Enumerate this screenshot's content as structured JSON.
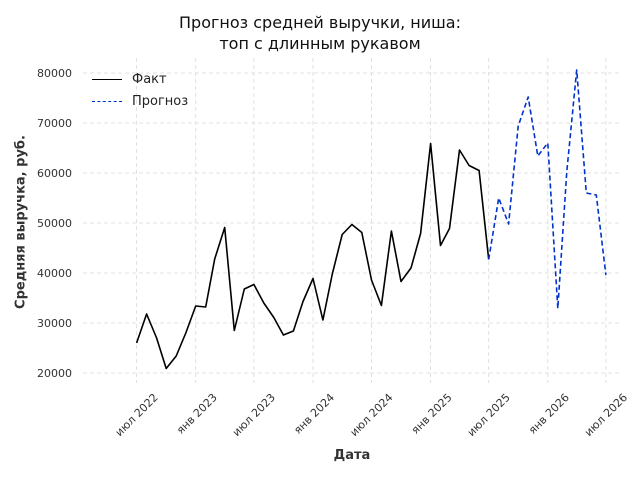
{
  "chart_data": {
    "type": "line",
    "title_line1": "Прогноз средней выручки, ниша:",
    "title_line2": "топ с длинным рукавом",
    "xlabel": "Дата",
    "ylabel": "Средняя выручка, руб.",
    "ylim": [
      18000,
      83000
    ],
    "y_ticks": [
      20000,
      30000,
      40000,
      50000,
      60000,
      70000,
      80000
    ],
    "y_tick_labels": [
      "20000",
      "30000",
      "40000",
      "50000",
      "60000",
      "70000",
      "80000"
    ],
    "x_range": [
      "2022-01-15",
      "2026-08-20"
    ],
    "x_ticks": [
      "2022-07-01",
      "2023-01-01",
      "2023-07-01",
      "2024-01-01",
      "2024-07-01",
      "2025-01-01",
      "2025-07-01",
      "2026-01-01",
      "2026-07-01"
    ],
    "x_tick_labels": [
      "июл 2022",
      "янв 2023",
      "июл 2023",
      "янв 2024",
      "июл 2024",
      "янв 2025",
      "июл 2025",
      "янв 2026",
      "июл 2026"
    ],
    "grid": true,
    "legend_position": "top-left",
    "series": [
      {
        "name": "Факт",
        "color": "#000000",
        "style": "solid",
        "x": [
          "2022-07-01",
          "2022-08-01",
          "2022-09-01",
          "2022-10-01",
          "2022-11-01",
          "2022-12-01",
          "2023-01-01",
          "2023-02-01",
          "2023-03-01",
          "2023-04-01",
          "2023-05-01",
          "2023-06-01",
          "2023-07-01",
          "2023-08-01",
          "2023-09-01",
          "2023-10-01",
          "2023-11-01",
          "2023-12-01",
          "2024-01-01",
          "2024-02-01",
          "2024-03-01",
          "2024-04-01",
          "2024-05-01",
          "2024-06-01",
          "2024-07-01",
          "2024-08-01",
          "2024-09-01",
          "2024-10-01",
          "2024-11-01",
          "2024-12-01",
          "2025-01-01",
          "2025-02-01",
          "2025-03-01",
          "2025-04-01",
          "2025-05-01",
          "2025-06-01",
          "2025-07-01"
        ],
        "values": [
          26000,
          31800,
          27000,
          20900,
          23400,
          28000,
          33400,
          33200,
          42800,
          49100,
          28500,
          36800,
          37700,
          34000,
          31100,
          27600,
          28400,
          34300,
          38900,
          30600,
          39800,
          47700,
          49700,
          48100,
          38600,
          33500,
          48400,
          38300,
          41000,
          47900,
          65900,
          45500,
          48900,
          64600,
          61500,
          60500,
          42700
        ]
      },
      {
        "name": "Прогноз",
        "color": "#0033cc",
        "style": "dashed",
        "x": [
          "2025-07-01",
          "2025-08-01",
          "2025-09-01",
          "2025-10-01",
          "2025-11-01",
          "2025-12-01",
          "2026-01-01",
          "2026-02-01",
          "2026-03-01",
          "2026-04-01",
          "2026-05-01",
          "2026-06-01",
          "2026-07-01"
        ],
        "values": [
          42700,
          55000,
          49800,
          69400,
          75200,
          63400,
          66000,
          32900,
          60300,
          80600,
          56000,
          55600,
          39600
        ]
      }
    ]
  }
}
